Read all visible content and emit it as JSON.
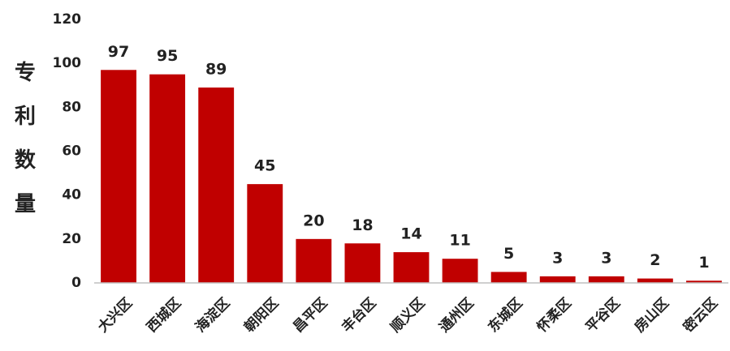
{
  "chart_data": {
    "type": "bar",
    "y_label": "专利数量",
    "categories": [
      "大兴区",
      "西城区",
      "海淀区",
      "朝阳区",
      "昌平区",
      "丰台区",
      "顺义区",
      "通州区",
      "东城区",
      "怀柔区",
      "平谷区",
      "房山区",
      "密云区"
    ],
    "values": [
      97,
      95,
      89,
      45,
      20,
      18,
      14,
      11,
      5,
      3,
      3,
      2,
      1
    ],
    "color": "#c00000",
    "ylim": [
      0,
      120
    ],
    "yticks": [
      0,
      20,
      40,
      60,
      80,
      100,
      120
    ],
    "grid": false
  }
}
